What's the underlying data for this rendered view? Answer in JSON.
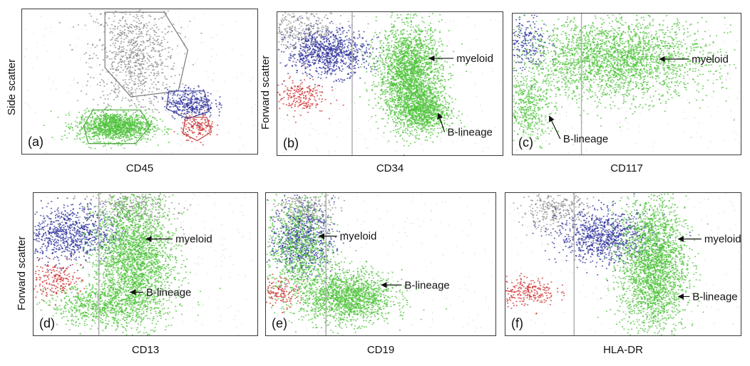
{
  "colors": {
    "gray": "#8a8a8a",
    "blue": "#2a2e9a",
    "green": "#4cc238",
    "red": "#cc2a2a",
    "gate_gray": "#7a7a7a",
    "gate_blue": "#3a3f9a",
    "gate_green": "#4aa83a",
    "gate_red": "#c04040",
    "threshold_line": "#b0b0b0"
  },
  "y_axis_labels": {
    "side_scatter": "Side scatter",
    "forward_scatter": "Forward scatter"
  },
  "chart_data": [
    {
      "type": "scatter",
      "panel": "(a)",
      "xlabel": "CD45",
      "ylabel": "Side scatter",
      "populations": [
        {
          "color": "gray",
          "center": [
            0.47,
            0.68
          ],
          "spread": [
            0.09,
            0.2
          ],
          "count": 900
        },
        {
          "color": "green",
          "center": [
            0.39,
            0.2
          ],
          "spread": [
            0.08,
            0.05
          ],
          "count": 1300
        },
        {
          "color": "blue",
          "center": [
            0.71,
            0.36
          ],
          "spread": [
            0.05,
            0.05
          ],
          "count": 350
        },
        {
          "color": "red",
          "center": [
            0.74,
            0.2
          ],
          "spread": [
            0.035,
            0.04
          ],
          "count": 140
        }
      ],
      "annotations": []
    },
    {
      "type": "scatter",
      "panel": "(b)",
      "xlabel": "CD34",
      "ylabel": "Forward scatter",
      "threshold_x": 0.33,
      "populations": [
        {
          "color": "gray",
          "center": [
            0.1,
            0.88
          ],
          "spread": [
            0.1,
            0.07
          ],
          "count": 350
        },
        {
          "color": "blue",
          "center": [
            0.22,
            0.72
          ],
          "spread": [
            0.09,
            0.08
          ],
          "count": 900
        },
        {
          "color": "green",
          "center": [
            0.58,
            0.58
          ],
          "spread": [
            0.07,
            0.17
          ],
          "count": 2300
        },
        {
          "color": "green",
          "center": [
            0.64,
            0.32
          ],
          "spread": [
            0.06,
            0.08
          ],
          "count": 900
        },
        {
          "color": "red",
          "center": [
            0.09,
            0.42
          ],
          "spread": [
            0.06,
            0.06
          ],
          "count": 220
        }
      ],
      "annotations": [
        {
          "text": "myeloid",
          "tip": [
            0.67,
            0.68
          ],
          "text_pos": [
            0.79,
            0.68
          ]
        },
        {
          "text": "B-lineage",
          "tip": [
            0.71,
            0.3
          ],
          "text_pos": [
            0.75,
            0.17
          ]
        }
      ]
    },
    {
      "type": "scatter",
      "panel": "(c)",
      "xlabel": "CD117",
      "ylabel": "",
      "threshold_x": 0.3,
      "populations": [
        {
          "color": "blue",
          "center": [
            0.05,
            0.8
          ],
          "spread": [
            0.05,
            0.1
          ],
          "count": 250
        },
        {
          "color": "green",
          "center": [
            0.45,
            0.68
          ],
          "spread": [
            0.2,
            0.14
          ],
          "count": 2600
        },
        {
          "color": "green",
          "center": [
            0.06,
            0.34
          ],
          "spread": [
            0.05,
            0.14
          ],
          "count": 500
        }
      ],
      "annotations": [
        {
          "text": "myeloid",
          "tip": [
            0.64,
            0.68
          ],
          "text_pos": [
            0.78,
            0.68
          ]
        },
        {
          "text": "B-lineage",
          "tip": [
            0.16,
            0.28
          ],
          "text_pos": [
            0.22,
            0.12
          ]
        }
      ]
    },
    {
      "type": "scatter",
      "panel": "(d)",
      "xlabel": "CD13",
      "ylabel": "Forward scatter",
      "threshold_x": 0.29,
      "populations": [
        {
          "color": "gray",
          "center": [
            0.42,
            0.9
          ],
          "spread": [
            0.1,
            0.06
          ],
          "count": 300
        },
        {
          "color": "blue",
          "center": [
            0.16,
            0.72
          ],
          "spread": [
            0.11,
            0.1
          ],
          "count": 900
        },
        {
          "color": "green",
          "center": [
            0.44,
            0.55
          ],
          "spread": [
            0.09,
            0.23
          ],
          "count": 2600
        },
        {
          "color": "green",
          "center": [
            0.3,
            0.22
          ],
          "spread": [
            0.12,
            0.07
          ],
          "count": 700
        },
        {
          "color": "red",
          "center": [
            0.09,
            0.4
          ],
          "spread": [
            0.06,
            0.06
          ],
          "count": 200
        }
      ],
      "annotations": [
        {
          "text": "myeloid",
          "tip": [
            0.5,
            0.68
          ],
          "text_pos": [
            0.63,
            0.68
          ]
        },
        {
          "text": "B-lineage",
          "tip": [
            0.43,
            0.31
          ],
          "text_pos": [
            0.5,
            0.31
          ]
        }
      ]
    },
    {
      "type": "scatter",
      "panel": "(e)",
      "xlabel": "CD19",
      "ylabel": "",
      "threshold_x": 0.26,
      "populations": [
        {
          "color": "gray",
          "center": [
            0.17,
            0.88
          ],
          "spread": [
            0.06,
            0.08
          ],
          "count": 300
        },
        {
          "color": "blue",
          "center": [
            0.15,
            0.68
          ],
          "spread": [
            0.07,
            0.12
          ],
          "count": 700
        },
        {
          "color": "green",
          "center": [
            0.14,
            0.6
          ],
          "spread": [
            0.07,
            0.18
          ],
          "count": 900
        },
        {
          "color": "green",
          "center": [
            0.35,
            0.28
          ],
          "spread": [
            0.1,
            0.09
          ],
          "count": 1600
        },
        {
          "color": "red",
          "center": [
            0.06,
            0.32
          ],
          "spread": [
            0.04,
            0.05
          ],
          "count": 130
        }
      ],
      "annotations": [
        {
          "text": "myeloid",
          "tip": [
            0.23,
            0.7
          ],
          "text_pos": [
            0.32,
            0.7
          ]
        },
        {
          "text": "B-lineage",
          "tip": [
            0.5,
            0.36
          ],
          "text_pos": [
            0.6,
            0.36
          ]
        }
      ]
    },
    {
      "type": "scatter",
      "panel": "(f)",
      "xlabel": "HLA-DR",
      "ylabel": "",
      "threshold_x": 0.29,
      "populations": [
        {
          "color": "gray",
          "center": [
            0.2,
            0.88
          ],
          "spread": [
            0.07,
            0.07
          ],
          "count": 300
        },
        {
          "color": "blue",
          "center": [
            0.42,
            0.7
          ],
          "spread": [
            0.1,
            0.09
          ],
          "count": 900
        },
        {
          "color": "green",
          "center": [
            0.62,
            0.5
          ],
          "spread": [
            0.07,
            0.24
          ],
          "count": 2500
        },
        {
          "color": "red",
          "center": [
            0.09,
            0.32
          ],
          "spread": [
            0.06,
            0.05
          ],
          "count": 230
        }
      ],
      "annotations": [
        {
          "text": "myeloid",
          "tip": [
            0.73,
            0.68
          ],
          "text_pos": [
            0.84,
            0.68
          ]
        },
        {
          "text": "B-lineage",
          "tip": [
            0.73,
            0.28
          ],
          "text_pos": [
            0.79,
            0.28
          ]
        }
      ]
    }
  ]
}
